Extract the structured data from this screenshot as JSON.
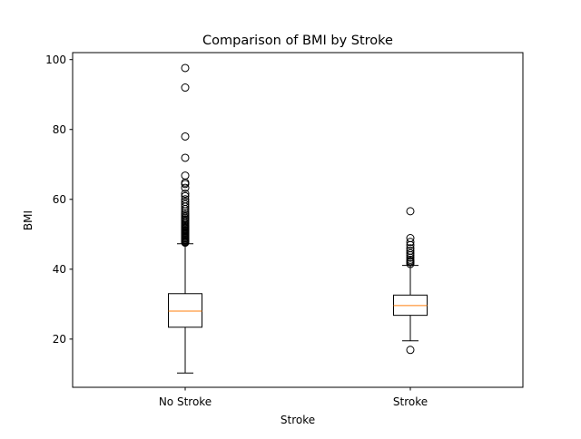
{
  "chart_data": {
    "type": "box",
    "title": "Comparison of BMI by Stroke",
    "xlabel": "Stroke",
    "ylabel": "BMI",
    "ylim": [
      6.2,
      102.0
    ],
    "yticks": [
      20,
      40,
      60,
      80,
      100
    ],
    "ytick_labels": [
      "20",
      "40",
      "60",
      "80",
      "100"
    ],
    "grid": false,
    "categories": [
      "No Stroke",
      "Stroke"
    ],
    "boxes": [
      {
        "category": "No Stroke",
        "whisker_low": 10.3,
        "q1": 23.4,
        "median": 28.0,
        "q3": 33.0,
        "whisker_high": 47.3,
        "outliers": [
          47.6,
          47.8,
          48.0,
          48.3,
          48.5,
          48.8,
          49.0,
          49.3,
          49.6,
          49.9,
          50.2,
          50.5,
          50.8,
          51.1,
          51.4,
          51.7,
          52.0,
          52.3,
          52.6,
          53.0,
          53.4,
          53.8,
          54.2,
          54.6,
          55.0,
          55.5,
          56.0,
          56.6,
          57.2,
          57.9,
          58.6,
          59.3,
          60.0,
          60.9,
          61.6,
          63.3,
          64.4,
          64.8,
          66.8,
          71.9,
          78.0,
          92.0,
          97.6
        ],
        "colors": {
          "box": "#000000",
          "median": "#ff7f0e"
        }
      },
      {
        "category": "Stroke",
        "whisker_low": 19.5,
        "q1": 26.8,
        "median": 29.6,
        "q3": 32.6,
        "whisker_high": 41.1,
        "outliers": [
          16.9,
          41.5,
          42.0,
          42.3,
          42.7,
          43.3,
          44.0,
          44.6,
          45.3,
          46.0,
          46.9,
          47.8,
          48.9,
          56.6
        ],
        "colors": {
          "box": "#000000",
          "median": "#ff7f0e"
        }
      }
    ]
  }
}
